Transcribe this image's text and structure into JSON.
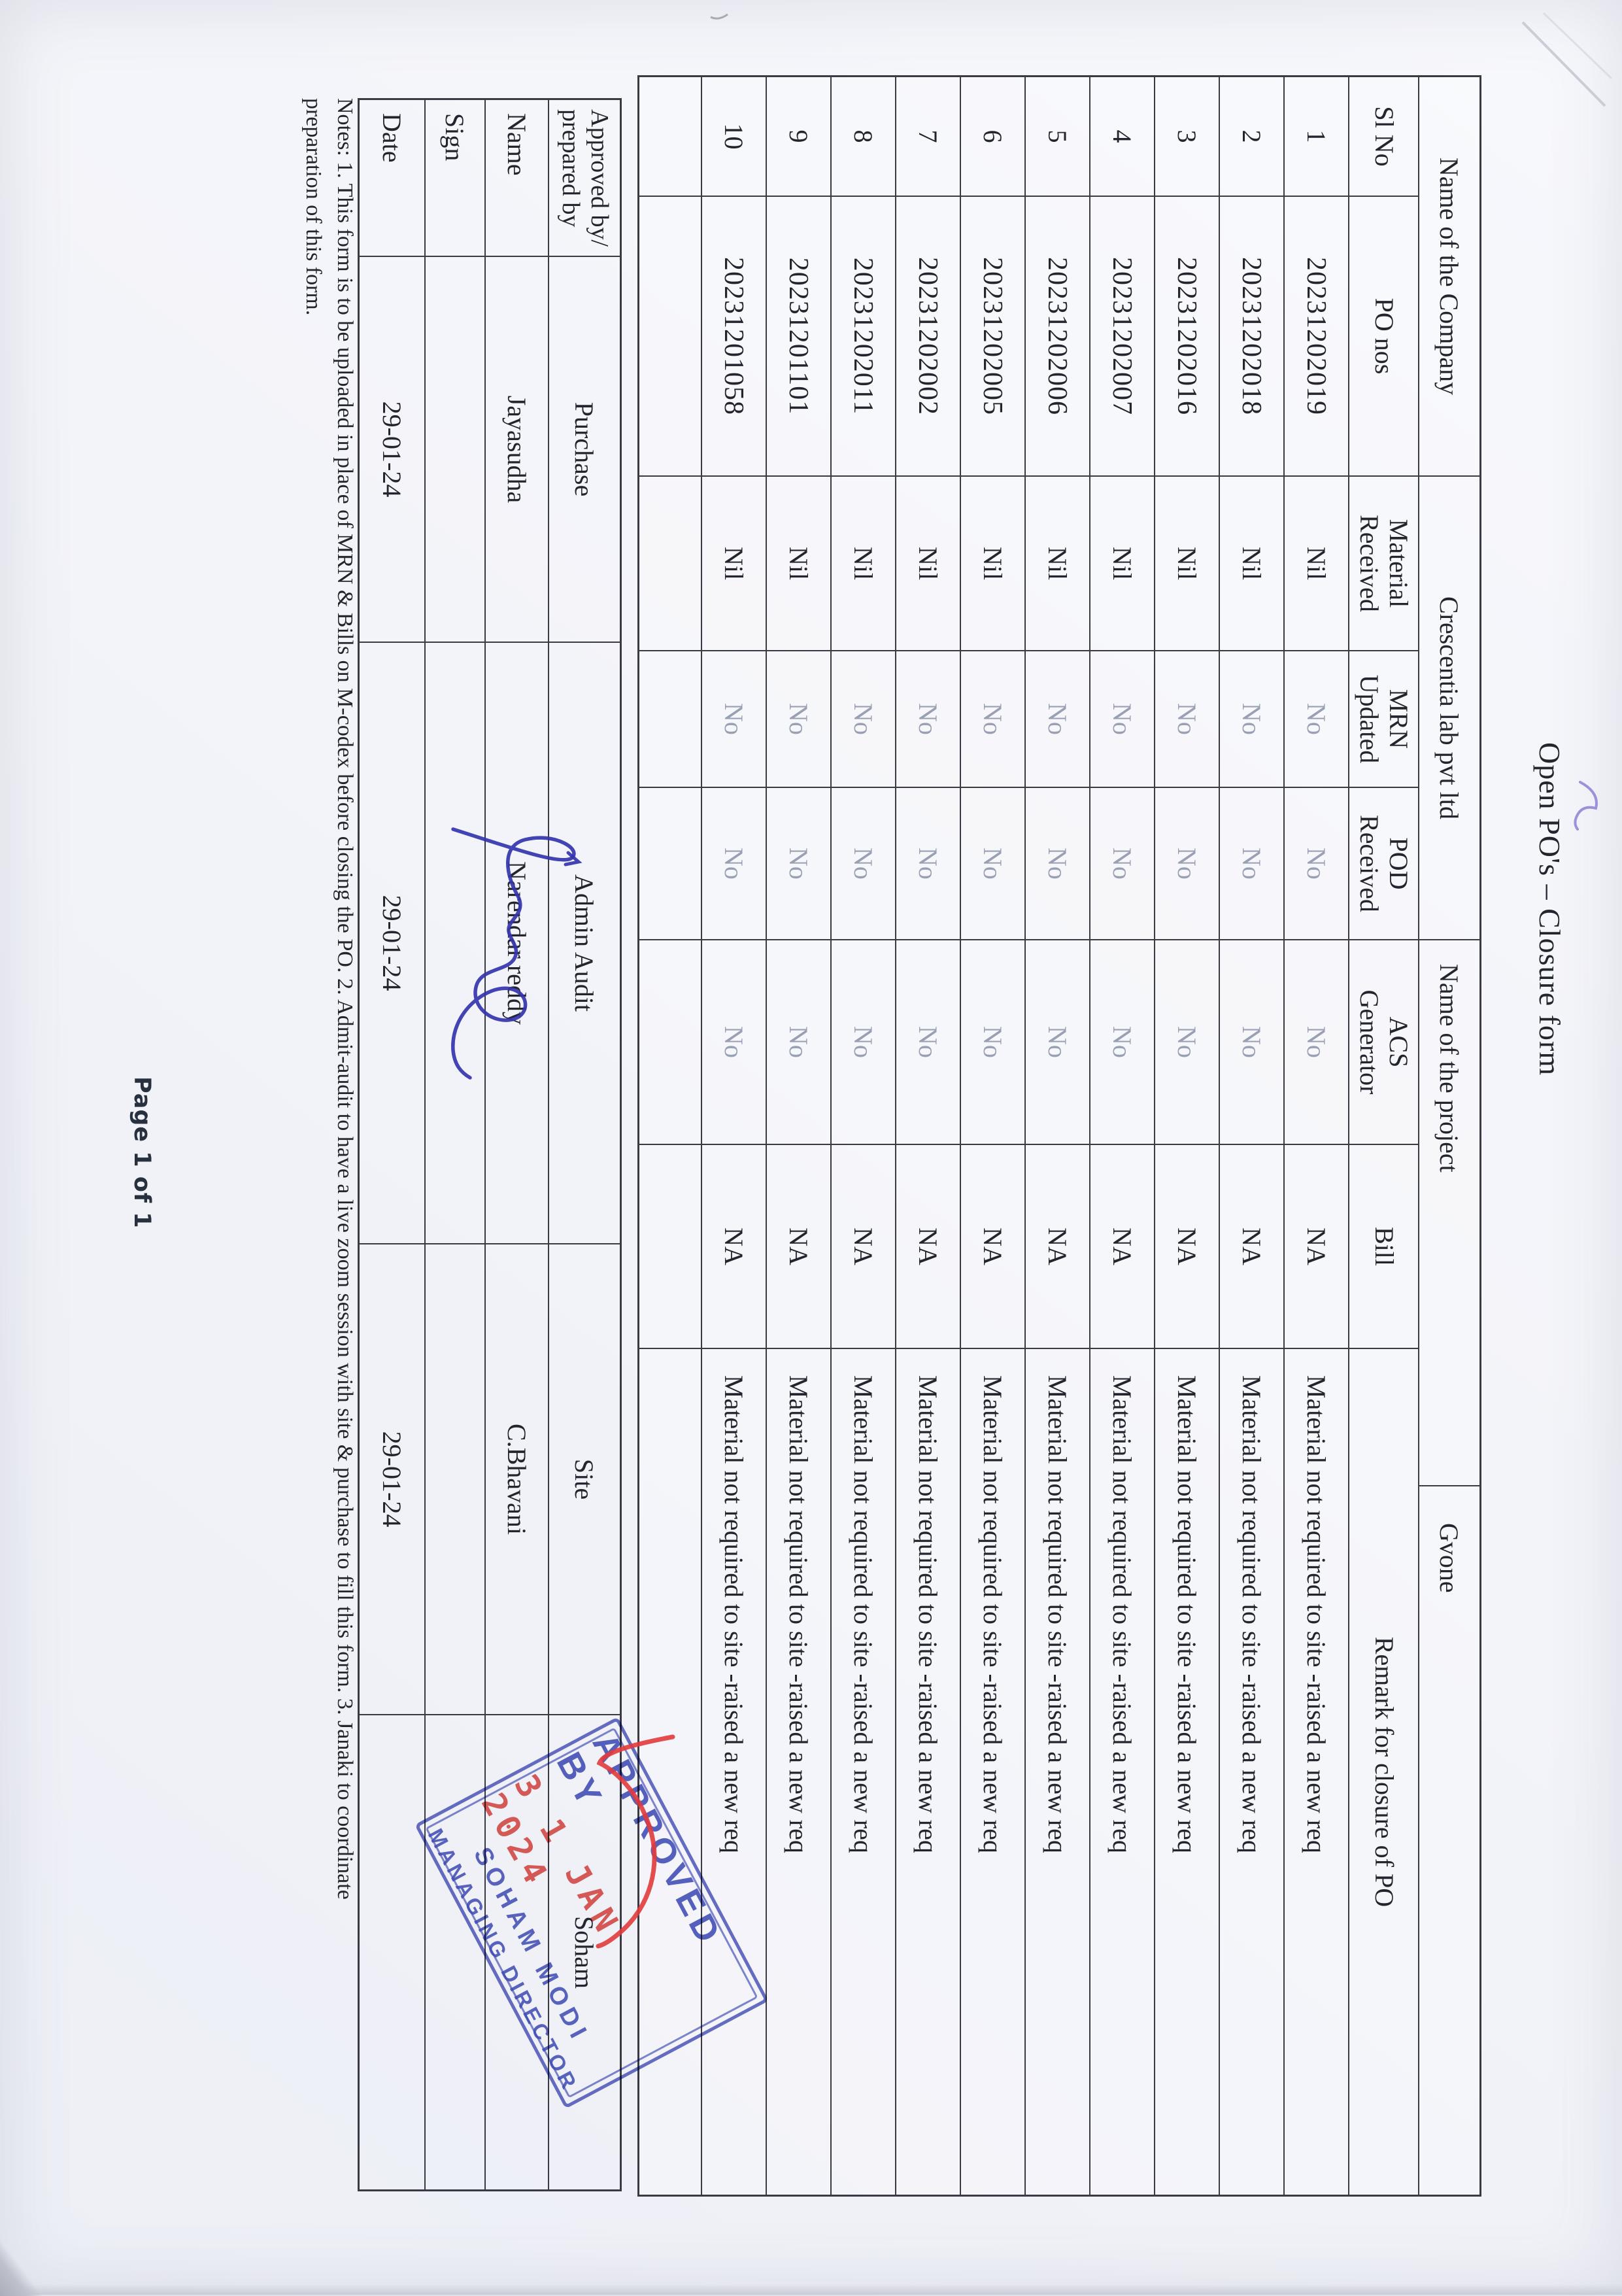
{
  "title": "Open PO's – Closure form",
  "info_row": {
    "company_label": "Name of the Company",
    "company_value": "Crescentia lab pvt ltd",
    "project_label": "Name of the project",
    "project_value": "Gvone"
  },
  "po_table": {
    "headers": {
      "sl_no": "Sl No",
      "po_nos": "PO nos",
      "material_received": "Material\nReceived",
      "mrn_updated": "MRN\nUpdated",
      "pod_received": "POD\nReceived",
      "acs_generator": "ACS\nGenerator",
      "bill": "Bill",
      "remark": "Remark for closure of PO"
    },
    "rows": [
      {
        "sl": "1",
        "po": "20231202019",
        "material": "Nil",
        "mrn": "No",
        "pod": "No",
        "acs": "No",
        "bill": "NA",
        "remark": "Material not required to site -raised a new req"
      },
      {
        "sl": "2",
        "po": "20231202018",
        "material": "Nil",
        "mrn": "No",
        "pod": "No",
        "acs": "No",
        "bill": "NA",
        "remark": "Material not required to site -raised a new req"
      },
      {
        "sl": "3",
        "po": "20231202016",
        "material": "Nil",
        "mrn": "No",
        "pod": "No",
        "acs": "No",
        "bill": "NA",
        "remark": "Material not required to site -raised a new req"
      },
      {
        "sl": "4",
        "po": "20231202007",
        "material": "Nil",
        "mrn": "No",
        "pod": "No",
        "acs": "No",
        "bill": "NA",
        "remark": "Material not required to site -raised a new req"
      },
      {
        "sl": "5",
        "po": "20231202006",
        "material": "Nil",
        "mrn": "No",
        "pod": "No",
        "acs": "No",
        "bill": "NA",
        "remark": "Material not required to site -raised a new req"
      },
      {
        "sl": "6",
        "po": "20231202005",
        "material": "Nil",
        "mrn": "No",
        "pod": "No",
        "acs": "No",
        "bill": "NA",
        "remark": "Material not required to site -raised a new req"
      },
      {
        "sl": "7",
        "po": "20231202002",
        "material": "Nil",
        "mrn": "No",
        "pod": "No",
        "acs": "No",
        "bill": "NA",
        "remark": "Material not required to site -raised a new req"
      },
      {
        "sl": "8",
        "po": "20231202011",
        "material": "Nil",
        "mrn": "No",
        "pod": "No",
        "acs": "No",
        "bill": "NA",
        "remark": "Material not required to site -raised a new req"
      },
      {
        "sl": "9",
        "po": "20231201101",
        "material": "Nil",
        "mrn": "No",
        "pod": "No",
        "acs": "No",
        "bill": "NA",
        "remark": "Material not required to site -raised a new req"
      },
      {
        "sl": "10",
        "po": "20231201058",
        "material": "Nil",
        "mrn": "No",
        "pod": "No",
        "acs": "No",
        "bill": "NA",
        "remark": "Material not required to site -raised a new req"
      }
    ]
  },
  "approval_table": {
    "corner_label": "Approved by/\nprepared by",
    "columns": [
      "Purchase",
      "Admin Audit",
      "Site",
      "Soham"
    ],
    "row_labels": {
      "name": "Name",
      "sign": "Sign",
      "date": "Date"
    },
    "name_row": [
      "Jayasudha",
      "Narendar reddy",
      "C.Bhavani",
      ""
    ],
    "date_row": [
      "29-01-24",
      "29-01-24",
      "29-01-24",
      ""
    ]
  },
  "notes": {
    "line1": "Notes: 1. This form is to be uploaded in place of MRN & Bills on M-codex before closing the PO. 2. Admit-audit to have a live zoom session with site & purchase to fill this form. 3. Janaki to coordinate",
    "line2": "preparation of this form."
  },
  "stamp": {
    "line1": "APPROVED BY",
    "line2": "3 1 JAN 2024",
    "line3": "SOHAM MODI",
    "line4": "MANAGING DIRECTOR"
  },
  "page_footer": "Page 1 of 1",
  "colors": {
    "ink": "#22242e",
    "faded_ink": "#9aa0b4",
    "stamp_blue": "#3946b5",
    "stamp_red": "#db342e",
    "signature_blue": "#3434ae",
    "tick_red": "#e23b3b",
    "pen_purple": "#8d7fd6",
    "paper": "#f3f4f9"
  }
}
